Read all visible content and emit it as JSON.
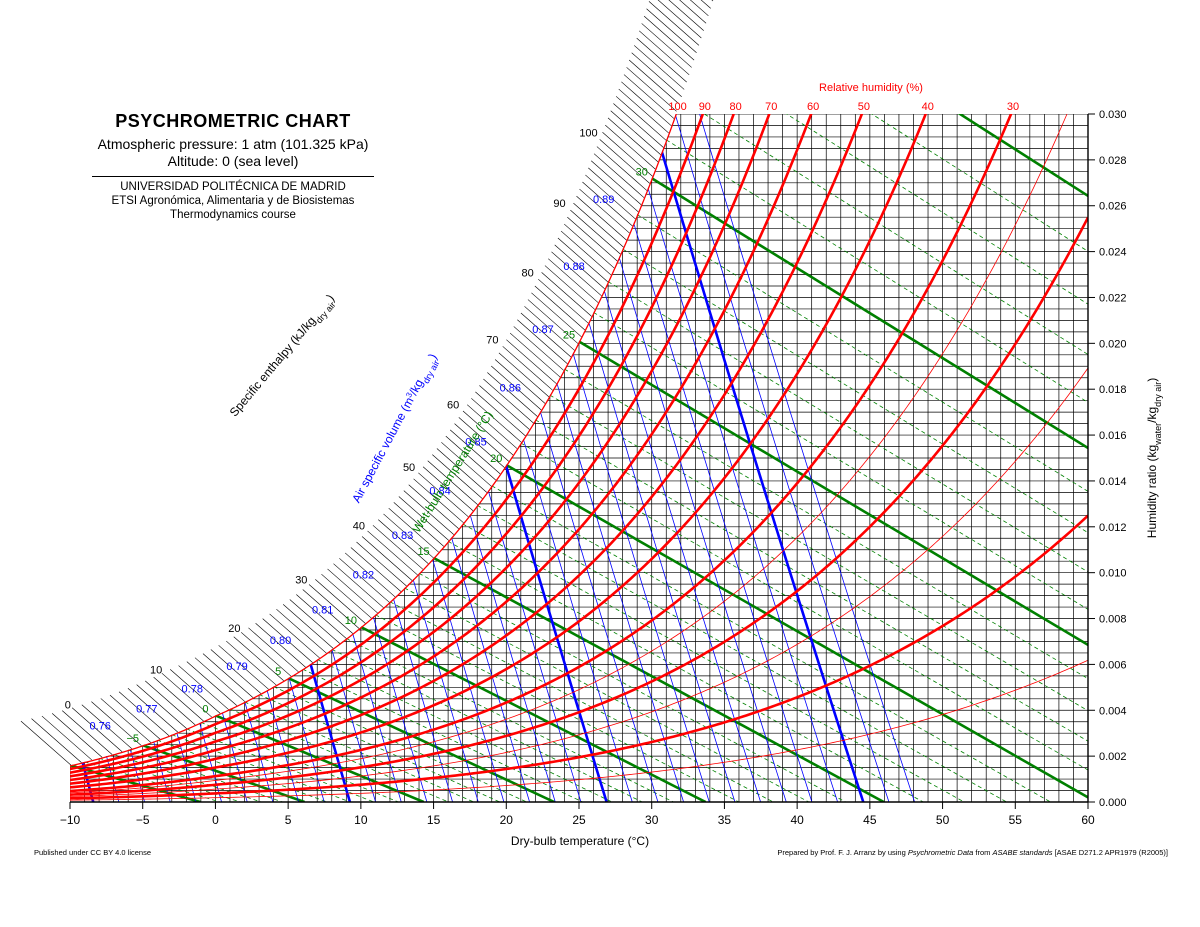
{
  "header": {
    "title": "PSYCHROMETRIC CHART",
    "pressure": "Atmospheric pressure: 1 atm (101.325 kPa)",
    "altitude": "Altitude: 0 (sea level)",
    "university": "UNIVERSIDAD POLITÉCNICA DE MADRID",
    "school": "ETSI Agronómica, Alimentaria y de Biosistemas",
    "course": "Thermodynamics course"
  },
  "footer": {
    "license": "Published under CC BY 4.0 license",
    "prepared_prefix": "Prepared by Prof. F. J. Arranz by using ",
    "prepared_source": "Psychrometric Data",
    "prepared_middle": " from ",
    "prepared_org": "ASABE standards",
    "prepared_suffix": " [ASAE D271.2 APR1979 (R2005)]"
  },
  "colors": {
    "rh": "#ff0000",
    "volume": "#0000ff",
    "wetbulb": "#008000",
    "grid": "#000000",
    "enthalpy": "#000000"
  },
  "chart_data": {
    "type": "psychrometric",
    "title": "PSYCHROMETRIC CHART",
    "xlabel": "Dry-bulb temperature (°C)",
    "ylabel": "Humidity ratio (kg_water/kg_dry air)",
    "xlim": [
      -10,
      60
    ],
    "ylim": [
      0,
      0.03
    ],
    "x_ticks": [
      -10,
      -5,
      0,
      5,
      10,
      15,
      20,
      25,
      30,
      35,
      40,
      45,
      50,
      55,
      60
    ],
    "x_tick_labels": [
      "−10",
      "−5",
      "0",
      "5",
      "10",
      "15",
      "20",
      "25",
      "30",
      "35",
      "40",
      "45",
      "50",
      "55",
      "60"
    ],
    "y_ticks": [
      "0.000",
      "0.002",
      "0.004",
      "0.006",
      "0.008",
      "0.010",
      "0.012",
      "0.014",
      "0.016",
      "0.018",
      "0.020",
      "0.022",
      "0.024",
      "0.026",
      "0.028",
      "0.030"
    ],
    "grid_x_step": 1,
    "grid_y_step": 0.0005,
    "relative_humidity": {
      "label": "Relative humidity (%)",
      "labeled": [
        100,
        90,
        80,
        70,
        60,
        50,
        40,
        30
      ],
      "heavy": [
        10,
        20,
        30,
        40,
        50,
        60,
        70,
        80,
        90,
        100
      ],
      "light": [
        5,
        15,
        25
      ]
    },
    "specific_volume": {
      "label": "Air specific volume (m³/kg_dry air)",
      "values": [
        0.76,
        0.77,
        0.78,
        0.79,
        0.8,
        0.81,
        0.82,
        0.83,
        0.84,
        0.85,
        0.86,
        0.87,
        0.88,
        0.89
      ],
      "labels": [
        "0.76",
        "0.77",
        "0.78",
        "0.79",
        "0.80",
        "0.81",
        "0.82",
        "0.83",
        "0.84",
        "0.85",
        "0.86",
        "0.87",
        "0.88",
        "0.89"
      ]
    },
    "wet_bulb": {
      "label": "Wet-bulb temperature (°C)",
      "values": [
        -5,
        0,
        5,
        10,
        15,
        20,
        25,
        30
      ],
      "labels": [
        "−5",
        "0",
        "5",
        "10",
        "15",
        "20",
        "25",
        "30"
      ]
    },
    "enthalpy": {
      "label": "Specific enthalpy (kJ/kg_dry air)",
      "labeled": [
        0,
        10,
        20,
        30,
        40,
        50,
        60,
        70,
        80,
        90,
        100
      ],
      "labels": [
        "0",
        "10",
        "20",
        "30",
        "40",
        "50",
        "60",
        "70",
        "80",
        "90",
        "100"
      ],
      "range": [
        -10,
        138
      ]
    }
  }
}
